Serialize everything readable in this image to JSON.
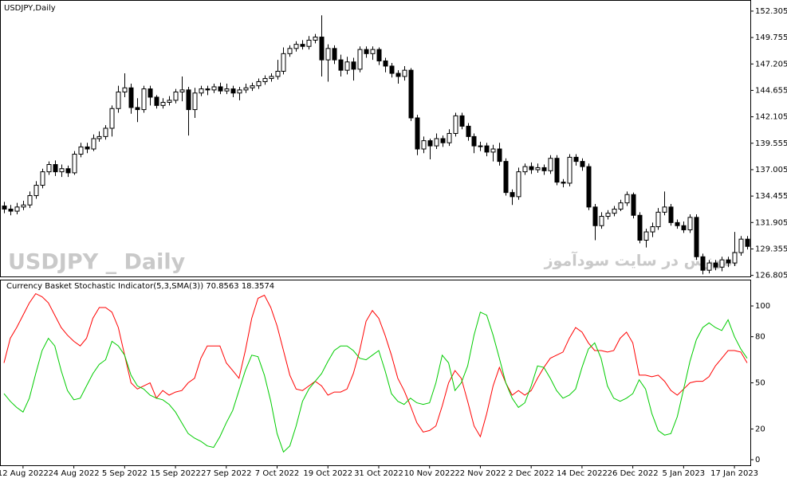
{
  "chart_data": [
    {
      "type": "candlestick",
      "title": "USDJPY,Daily",
      "watermark": "USDJPY _ Daily",
      "watermark2": "آموزش در سایت سودآموز",
      "up_color": "#ffffff",
      "down_color": "#000000",
      "line_color": "#000000",
      "grid": false,
      "ylim": [
        126.7,
        153.3
      ],
      "yticks": [
        152.305,
        149.755,
        147.205,
        144.655,
        142.105,
        139.555,
        137.005,
        134.455,
        131.905,
        129.355,
        126.805
      ],
      "open": [
        133.5,
        133.2,
        133.0,
        133.4,
        133.6,
        134.5,
        135.5,
        136.8,
        137.5,
        136.8,
        137.1,
        136.7,
        138.5,
        139.2,
        139.0,
        140.0,
        140.2,
        141.0,
        142.9,
        144.5,
        144.9,
        143.0,
        142.8,
        144.8,
        144.0,
        143.2,
        143.5,
        143.7,
        144.5,
        144.7,
        142.8,
        144.4,
        144.8,
        144.7,
        145.0,
        144.6,
        144.8,
        144.4,
        144.7,
        144.9,
        145.1,
        145.5,
        145.8,
        146.0,
        146.5,
        148.2,
        148.7,
        149.1,
        148.9,
        149.5,
        149.8,
        147.6,
        148.7,
        147.6,
        146.6,
        147.4,
        146.7,
        148.6,
        148.2,
        148.6,
        147.5,
        147.0,
        146.3,
        146.0,
        146.6,
        142.0,
        139.0,
        139.8,
        139.3,
        140.0,
        139.6,
        140.5,
        142.2,
        141.2,
        140.2,
        139.3,
        139.3,
        138.7,
        139.0,
        137.8,
        134.8,
        134.4,
        136.8,
        137.3,
        137.0,
        137.2,
        136.9,
        138.1,
        135.8,
        135.7,
        138.2,
        137.8,
        137.3,
        133.4,
        131.6,
        132.5,
        132.8,
        133.2,
        133.8,
        134.6,
        132.6,
        130.2,
        131.0,
        131.5,
        132.9,
        133.4,
        131.9,
        131.6,
        131.2,
        132.4,
        128.6,
        127.3,
        128.0,
        127.6,
        128.3,
        128.0,
        129.0,
        130.3
      ],
      "high": [
        133.9,
        133.6,
        133.8,
        134.0,
        134.9,
        135.9,
        137.1,
        137.8,
        137.9,
        137.5,
        137.4,
        138.8,
        139.6,
        139.6,
        140.4,
        140.7,
        141.3,
        143.2,
        145.1,
        146.3,
        145.3,
        143.9,
        145.1,
        145.1,
        144.2,
        143.9,
        144.1,
        144.8,
        146.0,
        145.0,
        144.9,
        145.1,
        145.1,
        145.3,
        145.4,
        145.3,
        145.1,
        145.0,
        145.3,
        145.4,
        145.8,
        146.1,
        146.3,
        147.6,
        148.8,
        149.0,
        149.4,
        149.5,
        149.9,
        150.1,
        151.9,
        149.1,
        149.0,
        148.1,
        147.9,
        147.8,
        148.9,
        148.9,
        148.9,
        148.8,
        147.8,
        147.3,
        146.6,
        147.0,
        146.8,
        142.3,
        140.2,
        140.0,
        140.5,
        140.3,
        140.9,
        142.5,
        142.5,
        141.5,
        140.5,
        139.7,
        139.6,
        139.4,
        139.6,
        138.1,
        135.1,
        137.2,
        137.6,
        137.7,
        137.6,
        137.5,
        138.4,
        138.4,
        136.1,
        138.5,
        138.5,
        138.1,
        137.6,
        133.7,
        132.9,
        133.1,
        133.5,
        134.1,
        134.9,
        134.8,
        132.9,
        131.3,
        131.9,
        133.3,
        134.9,
        133.7,
        132.2,
        132.0,
        132.7,
        132.7,
        128.9,
        128.3,
        128.3,
        128.6,
        128.6,
        131.0,
        130.6,
        130.6
      ],
      "low": [
        132.8,
        132.6,
        132.7,
        133.1,
        133.3,
        134.2,
        135.2,
        136.5,
        136.4,
        136.3,
        136.3,
        136.5,
        138.2,
        138.6,
        138.8,
        139.7,
        139.9,
        140.2,
        142.5,
        144.0,
        142.4,
        141.6,
        142.5,
        143.2,
        142.9,
        142.9,
        143.2,
        143.4,
        143.6,
        140.3,
        142.0,
        144.1,
        144.2,
        144.4,
        144.3,
        144.3,
        144.0,
        143.7,
        144.4,
        144.6,
        144.8,
        145.2,
        145.5,
        145.7,
        146.2,
        147.9,
        148.4,
        148.6,
        148.6,
        149.2,
        146.0,
        145.5,
        147.2,
        146.0,
        146.2,
        145.6,
        146.4,
        147.8,
        147.6,
        147.1,
        146.4,
        145.9,
        145.3,
        145.6,
        141.7,
        138.4,
        138.6,
        138.0,
        139.0,
        139.2,
        139.3,
        140.2,
        140.9,
        139.8,
        138.6,
        138.8,
        138.3,
        137.8,
        137.4,
        134.5,
        133.6,
        134.1,
        136.5,
        136.6,
        136.7,
        136.5,
        136.6,
        135.5,
        135.3,
        135.4,
        137.4,
        136.9,
        133.1,
        130.2,
        131.3,
        132.2,
        132.5,
        133.0,
        133.5,
        132.3,
        129.9,
        129.5,
        130.5,
        131.2,
        132.6,
        131.6,
        131.3,
        130.9,
        130.9,
        128.3,
        126.9,
        127.0,
        127.3,
        127.2,
        127.6,
        127.7,
        128.7,
        129.3
      ],
      "close": [
        133.2,
        133.0,
        133.4,
        133.6,
        134.5,
        135.5,
        136.8,
        137.5,
        136.8,
        137.1,
        136.7,
        138.5,
        139.2,
        139.0,
        140.0,
        140.2,
        141.0,
        142.9,
        144.5,
        144.9,
        143.0,
        142.8,
        144.8,
        144.0,
        143.2,
        143.5,
        143.7,
        144.5,
        144.7,
        142.8,
        144.4,
        144.8,
        144.7,
        145.0,
        144.6,
        144.8,
        144.4,
        144.7,
        144.9,
        145.1,
        145.5,
        145.8,
        146.0,
        146.5,
        148.2,
        148.7,
        149.1,
        148.9,
        149.5,
        149.8,
        147.6,
        148.7,
        147.6,
        146.6,
        147.4,
        146.7,
        148.6,
        148.2,
        148.6,
        147.5,
        147.0,
        146.3,
        146.0,
        146.6,
        142.0,
        139.0,
        139.8,
        139.3,
        140.0,
        139.6,
        140.5,
        142.2,
        141.2,
        140.2,
        139.3,
        139.3,
        138.7,
        139.0,
        137.8,
        134.8,
        134.4,
        136.8,
        137.3,
        137.0,
        137.2,
        136.9,
        138.1,
        135.8,
        135.7,
        138.2,
        137.8,
        137.3,
        133.4,
        131.6,
        132.5,
        132.8,
        133.2,
        133.8,
        134.6,
        132.6,
        130.2,
        131.0,
        131.5,
        132.9,
        133.4,
        131.9,
        131.6,
        131.2,
        132.4,
        128.6,
        127.3,
        128.0,
        127.6,
        128.3,
        128.0,
        129.0,
        130.3,
        129.6
      ]
    },
    {
      "type": "line",
      "title": "Currency Basket Stochastic Indicator(5,3,SMA(3)) 70.8563 18.3574",
      "grid": false,
      "ylim": [
        -3.6,
        116.6
      ],
      "yticks": [
        100,
        80,
        50,
        20,
        0
      ],
      "categories": [
        null,
        null,
        null,
        "12 Aug 2022",
        null,
        null,
        null,
        null,
        null,
        null,
        null,
        "24 Aug 2022",
        null,
        null,
        null,
        null,
        null,
        null,
        null,
        "5 Sep 2022",
        null,
        null,
        null,
        null,
        null,
        null,
        null,
        "15 Sep 2022",
        null,
        null,
        null,
        null,
        null,
        null,
        null,
        "27 Sep 2022",
        null,
        null,
        null,
        null,
        null,
        null,
        null,
        "7 Oct 2022",
        null,
        null,
        null,
        null,
        null,
        null,
        null,
        "19 Oct 2022",
        null,
        null,
        null,
        null,
        null,
        null,
        null,
        "31 Oct 2022",
        null,
        null,
        null,
        null,
        null,
        null,
        null,
        "10 Nov 2022",
        null,
        null,
        null,
        null,
        null,
        null,
        null,
        "22 Nov 2022",
        null,
        null,
        null,
        null,
        null,
        null,
        null,
        "2 Dec 2022",
        null,
        null,
        null,
        null,
        null,
        null,
        null,
        "14 Dec 2022",
        null,
        null,
        null,
        null,
        null,
        null,
        null,
        "26 Dec 2022",
        null,
        null,
        null,
        null,
        null,
        null,
        null,
        "5 Jan 2023",
        null,
        null,
        null,
        null,
        null,
        null,
        null,
        "17 Jan 2023",
        null,
        null
      ],
      "series": [
        {
          "color": "#ff0000",
          "values": [
            63,
            79,
            86,
            94,
            102,
            108,
            106,
            102,
            94,
            86,
            81,
            77,
            74,
            79,
            92,
            99,
            99,
            96,
            86,
            68,
            50,
            46,
            48,
            50,
            40,
            45,
            42,
            44,
            45,
            50,
            53,
            66,
            74,
            74,
            74,
            63,
            58,
            53,
            71,
            92,
            105,
            107,
            99,
            87,
            71,
            55,
            46,
            45,
            48,
            51,
            48,
            42,
            44,
            44,
            46,
            56,
            71,
            90,
            97,
            92,
            81,
            68,
            53,
            45,
            35,
            24,
            18,
            19,
            22,
            35,
            50,
            58,
            53,
            38,
            22,
            15,
            30,
            48,
            60,
            50,
            42,
            45,
            42,
            45,
            53,
            60,
            66,
            68,
            70,
            79,
            86,
            83,
            76,
            71,
            71,
            70,
            71,
            79,
            83,
            76,
            55,
            55,
            54,
            55,
            51,
            45,
            42,
            46,
            50,
            51,
            51,
            54,
            61,
            66,
            71,
            71,
            70,
            63
          ]
        },
        {
          "color": "#00cc00",
          "values": [
            43,
            38,
            34,
            31,
            40,
            56,
            71,
            79,
            74,
            58,
            45,
            39,
            40,
            48,
            56,
            62,
            65,
            77,
            74,
            68,
            55,
            48,
            46,
            42,
            40,
            39,
            36,
            31,
            24,
            17,
            14,
            12,
            9,
            8,
            15,
            24,
            32,
            45,
            58,
            68,
            67,
            55,
            38,
            17,
            5,
            9,
            22,
            38,
            46,
            51,
            56,
            64,
            71,
            74,
            74,
            71,
            66,
            65,
            68,
            71,
            58,
            43,
            38,
            36,
            40,
            37,
            36,
            37,
            50,
            68,
            63,
            45,
            50,
            61,
            81,
            96,
            94,
            81,
            66,
            50,
            40,
            34,
            37,
            48,
            61,
            60,
            53,
            45,
            40,
            42,
            46,
            60,
            72,
            76,
            66,
            48,
            40,
            38,
            40,
            43,
            52,
            46,
            30,
            19,
            16,
            17,
            28,
            46,
            64,
            78,
            86,
            89,
            86,
            84,
            91,
            80,
            72,
            66
          ]
        }
      ]
    }
  ]
}
